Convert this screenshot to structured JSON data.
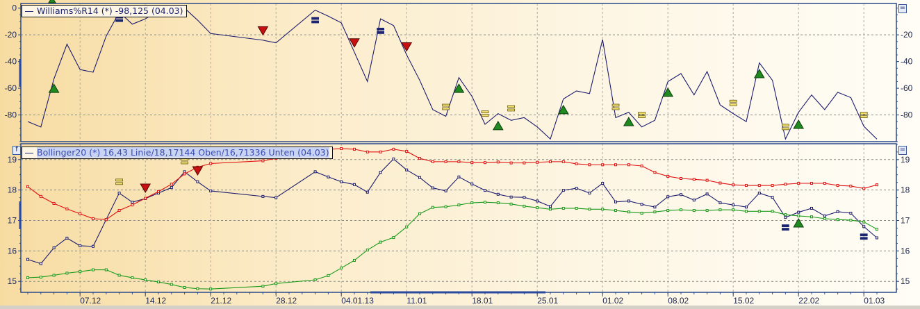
{
  "panels": {
    "williams_legend": "Williams%R14 (*) -98,125 (04.03)",
    "bollinger_legend": "Bollinger20 (*) 16,43 Linie/18,17144 Oben/16,71336 Unten (04.03)",
    "function_button": "f",
    "menu_button": "="
  },
  "colors": {
    "background_left": "#f7dca2",
    "background_right": "#fffdf6",
    "frame": "#2a4a8a",
    "close_line": "#1b1b6e",
    "upper_band": "#e01010",
    "lower_band": "#1a9a1a",
    "buy_signal": "#1f8a1f",
    "sell_signal": "#c81010",
    "neutral_signal": "#f0e070",
    "neutral_dark_signal": "#1b2470"
  },
  "chart_data": [
    {
      "type": "line",
      "indicator": "Williams%R14",
      "dates": [
        "03.12",
        "04.12",
        "05.12",
        "06.12",
        "07.12",
        "10.12",
        "11.12",
        "12.12",
        "13.12",
        "14.12",
        "17.12",
        "18.12",
        "19.12",
        "20.12",
        "21.12",
        "24.12",
        "25.12",
        "26.12",
        "27.12",
        "28.12",
        "31.12",
        "01.01",
        "02.01",
        "03.01",
        "04.01",
        "07.01",
        "08.01",
        "09.01",
        "10.01",
        "11.01",
        "14.01",
        "15.01",
        "16.01",
        "17.01",
        "18.01",
        "21.01",
        "22.01",
        "23.01",
        "24.01",
        "25.01",
        "28.01",
        "29.01",
        "30.01",
        "31.01",
        "01.02",
        "04.02",
        "05.02",
        "06.02",
        "07.02",
        "08.02",
        "11.02",
        "12.02",
        "13.02",
        "14.02",
        "15.02",
        "18.02",
        "19.02",
        "20.02",
        "21.02",
        "22.02",
        "25.02",
        "26.02",
        "27.02",
        "28.02",
        "01.03",
        "04.03"
      ],
      "series": [
        {
          "key": "williams",
          "values": [
            -85,
            -89,
            -53,
            -27,
            -46,
            -48,
            -21,
            -3,
            -12,
            -8,
            -2,
            -1,
            0,
            -9,
            -19,
            null,
            null,
            null,
            -24,
            -26,
            null,
            null,
            -1.5,
            -6,
            -11,
            -33,
            -55,
            -8,
            -13,
            -35,
            -54,
            -76,
            -81,
            -52,
            -66,
            -87,
            -79,
            -84,
            -82,
            -89,
            -98,
            -68,
            -62,
            -64,
            -23.5,
            -82,
            -78,
            -89,
            -84,
            -55,
            -49,
            -65,
            -47.5,
            -72.5,
            -79,
            -85,
            -41,
            -54,
            -98,
            -78,
            -65,
            -76,
            -63,
            -67,
            -88.5,
            -98.125
          ]
        }
      ],
      "signals": [
        {
          "type": "buy",
          "date": "05.12",
          "value": -60
        },
        {
          "type": "neutral-dark",
          "date": "12.12",
          "value": -8
        },
        {
          "type": "sell",
          "date": "27.12",
          "value": -17
        },
        {
          "type": "neutral-dark",
          "date": "02.01",
          "value": -9
        },
        {
          "type": "sell",
          "date": "07.01",
          "value": -26
        },
        {
          "type": "neutral-dark",
          "date": "09.01",
          "value": -17
        },
        {
          "type": "sell",
          "date": "11.01",
          "value": -29
        },
        {
          "type": "neutral",
          "date": "16.01",
          "value": -74
        },
        {
          "type": "buy",
          "date": "17.01",
          "value": -60
        },
        {
          "type": "neutral",
          "date": "21.01",
          "value": -79
        },
        {
          "type": "buy",
          "date": "22.01",
          "value": -88
        },
        {
          "type": "neutral",
          "date": "23.01",
          "value": -75
        },
        {
          "type": "buy",
          "date": "29.01",
          "value": -76
        },
        {
          "type": "neutral",
          "date": "04.02",
          "value": -74
        },
        {
          "type": "buy",
          "date": "05.02",
          "value": -85
        },
        {
          "type": "neutral",
          "date": "06.02",
          "value": -80
        },
        {
          "type": "buy",
          "date": "08.02",
          "value": -63
        },
        {
          "type": "neutral",
          "date": "15.02",
          "value": -71
        },
        {
          "type": "buy",
          "date": "19.02",
          "value": -49
        },
        {
          "type": "neutral",
          "date": "21.02",
          "value": -89
        },
        {
          "type": "buy",
          "date": "22.02",
          "value": -87
        },
        {
          "type": "neutral",
          "date": "01.03",
          "value": -80
        }
      ],
      "ylim": [
        -100,
        3.5
      ],
      "yticks_left": [
        "0",
        "-20",
        "-40",
        "-60",
        "-80"
      ],
      "yticks_right": [
        "-20",
        "-40",
        "-60",
        "-80"
      ],
      "ytick_values_left": [
        0,
        -20,
        -40,
        -60,
        -80
      ],
      "ytick_values_right": [
        -20,
        -40,
        -60,
        -80
      ],
      "grid_values": [
        -20,
        -80
      ],
      "grid": true
    },
    {
      "type": "line",
      "indicator": "Bollinger20",
      "series": [
        {
          "key": "close",
          "values": [
            15.72,
            15.58,
            16.1,
            16.42,
            16.17,
            16.15,
            17.03,
            17.9,
            17.6,
            17.72,
            17.9,
            18.08,
            18.6,
            18.27,
            17.97,
            null,
            null,
            null,
            17.79,
            17.75,
            null,
            null,
            18.6,
            18.43,
            18.27,
            18.18,
            17.93,
            18.58,
            19.02,
            18.66,
            18.41,
            18.07,
            17.97,
            18.43,
            18.2,
            17.99,
            17.86,
            17.77,
            17.76,
            17.64,
            17.46,
            17.99,
            18.06,
            17.9,
            18.22,
            17.61,
            17.64,
            17.53,
            17.44,
            17.78,
            17.85,
            17.67,
            17.87,
            17.58,
            17.51,
            17.44,
            17.9,
            17.76,
            17.1,
            17.27,
            17.4,
            17.15,
            17.29,
            17.24,
            16.8,
            16.43
          ]
        },
        {
          "key": "upper",
          "values": [
            18.11,
            17.79,
            17.56,
            17.38,
            17.22,
            17.06,
            17.03,
            17.33,
            17.51,
            17.73,
            17.95,
            18.19,
            18.53,
            18.75,
            18.87,
            null,
            null,
            null,
            18.96,
            19.04,
            null,
            null,
            19.23,
            19.34,
            19.36,
            19.34,
            19.25,
            19.25,
            19.34,
            19.27,
            19.04,
            18.93,
            18.93,
            18.93,
            18.9,
            18.9,
            18.92,
            18.89,
            18.89,
            18.91,
            18.93,
            18.93,
            18.86,
            18.83,
            18.83,
            18.83,
            18.83,
            18.79,
            18.58,
            18.45,
            18.38,
            18.35,
            18.32,
            18.23,
            18.17,
            18.15,
            18.15,
            18.15,
            18.19,
            18.22,
            18.22,
            18.22,
            18.15,
            18.13,
            18.05,
            18.17144
          ]
        },
        {
          "key": "lower",
          "values": [
            15.12,
            15.14,
            15.2,
            15.27,
            15.32,
            15.38,
            15.38,
            15.2,
            15.12,
            15.05,
            14.98,
            14.9,
            14.8,
            14.76,
            14.75,
            null,
            null,
            null,
            14.84,
            14.93,
            null,
            null,
            15.05,
            15.19,
            15.44,
            15.69,
            16.03,
            16.29,
            16.44,
            16.79,
            17.22,
            17.43,
            17.45,
            17.51,
            17.58,
            17.6,
            17.58,
            17.54,
            17.47,
            17.42,
            17.37,
            17.4,
            17.4,
            17.37,
            17.37,
            17.33,
            17.28,
            17.24,
            17.28,
            17.33,
            17.35,
            17.33,
            17.33,
            17.35,
            17.35,
            17.3,
            17.3,
            17.3,
            17.19,
            17.15,
            17.12,
            17.06,
            17.03,
            17.01,
            16.95,
            16.71336
          ]
        }
      ],
      "signals": [
        {
          "type": "neutral",
          "date": "12.12",
          "value": 18.27
        },
        {
          "type": "sell",
          "date": "14.12",
          "value": 18.06
        },
        {
          "type": "neutral",
          "date": "19.12",
          "value": 18.95
        },
        {
          "type": "sell",
          "date": "20.12",
          "value": 18.63
        },
        {
          "type": "neutral-dark",
          "date": "21.02",
          "value": 16.77
        },
        {
          "type": "buy",
          "date": "22.02",
          "value": 16.92
        },
        {
          "type": "neutral-dark",
          "date": "01.03",
          "value": 16.47
        }
      ],
      "ylim": [
        14.64,
        19.52
      ],
      "yticks_left": [
        "15",
        "16",
        "17",
        "18",
        "19"
      ],
      "yticks_right": [
        "15",
        "16",
        "17",
        "18",
        "19"
      ],
      "ytick_values_left": [
        15,
        16,
        17,
        18,
        19
      ],
      "ytick_values_right": [
        15,
        16,
        17,
        18,
        19
      ],
      "grid_values": [
        15,
        16,
        17,
        18,
        19
      ],
      "grid": true,
      "xticks": [
        {
          "at": "07.12",
          "label": "07.12"
        },
        {
          "at": "14.12",
          "label": "14.12"
        },
        {
          "at": "21.12",
          "label": "21.12"
        },
        {
          "at": "28.12",
          "label": "28.12"
        },
        {
          "at": "04.01",
          "label": "04.01.13"
        },
        {
          "at": "11.01",
          "label": "11.01"
        },
        {
          "at": "18.01",
          "label": "18.01"
        },
        {
          "at": "25.01",
          "label": "25.01"
        },
        {
          "at": "01.02",
          "label": "01.02"
        },
        {
          "at": "08.02",
          "label": "08.02"
        },
        {
          "at": "15.02",
          "label": "15.02"
        },
        {
          "at": "22.02",
          "label": "22.02"
        },
        {
          "at": "01.03",
          "label": "01.03"
        }
      ]
    }
  ]
}
